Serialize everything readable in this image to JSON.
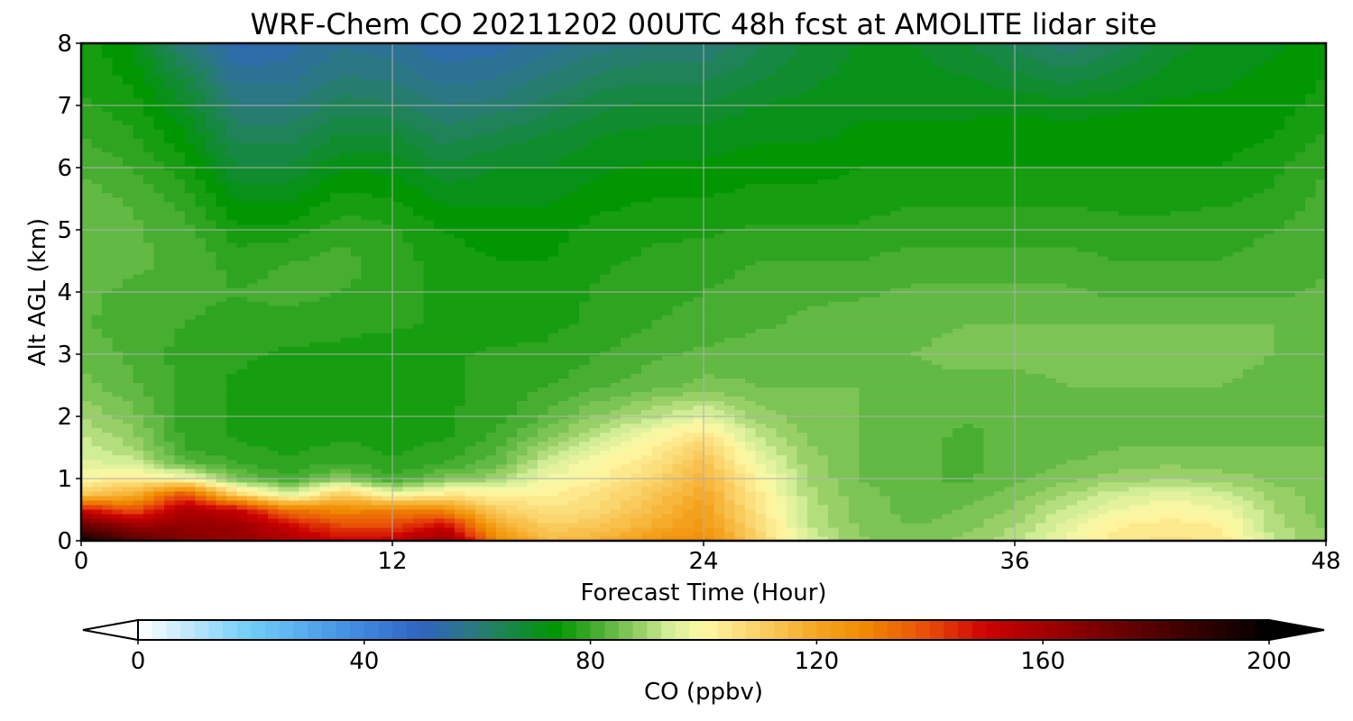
{
  "chart_data": {
    "type": "heatmap",
    "title": "WRF-Chem CO  20211202 00UTC 48h fcst at AMOLITE lidar site",
    "xlabel": "Forecast Time (Hour)",
    "ylabel": "Alt AGL (km)",
    "xlim": [
      0,
      48
    ],
    "ylim": [
      0,
      8
    ],
    "xticks": [
      0,
      12,
      24,
      36,
      48
    ],
    "yticks": [
      0,
      1,
      2,
      3,
      4,
      5,
      6,
      7,
      8
    ],
    "grid": true,
    "x": [
      0,
      2,
      4,
      6,
      8,
      10,
      12,
      14,
      16,
      18,
      20,
      22,
      24,
      26,
      28,
      30,
      32,
      34,
      36,
      38,
      40,
      42,
      44,
      46,
      48
    ],
    "y": [
      0,
      0.25,
      0.5,
      0.75,
      1.0,
      1.25,
      1.5,
      1.75,
      2.0,
      2.5,
      3.0,
      3.5,
      4.0,
      4.5,
      5.0,
      5.5,
      6.0,
      6.5,
      7.0,
      7.5,
      8.0
    ],
    "z": [
      [
        198,
        180,
        168,
        163,
        158,
        150,
        152,
        165,
        130,
        115,
        118,
        125,
        128,
        110,
        95,
        88,
        86,
        88,
        92,
        98,
        104,
        106,
        104,
        92,
        88
      ],
      [
        175,
        162,
        164,
        162,
        150,
        140,
        140,
        150,
        120,
        110,
        112,
        118,
        124,
        108,
        93,
        87,
        85,
        86,
        90,
        96,
        102,
        104,
        102,
        91,
        87
      ],
      [
        150,
        138,
        158,
        152,
        132,
        128,
        130,
        128,
        110,
        106,
        108,
        115,
        122,
        106,
        92,
        86,
        84,
        85,
        88,
        93,
        98,
        100,
        98,
        90,
        86
      ],
      [
        112,
        118,
        140,
        110,
        95,
        112,
        98,
        104,
        102,
        102,
        106,
        112,
        120,
        104,
        91,
        86,
        84,
        84,
        86,
        90,
        94,
        96,
        94,
        89,
        86
      ],
      [
        100,
        104,
        100,
        86,
        80,
        88,
        80,
        86,
        90,
        98,
        102,
        108,
        117,
        102,
        90,
        85,
        83,
        82,
        84,
        87,
        89,
        90,
        89,
        87,
        85
      ],
      [
        96,
        94,
        84,
        80,
        78,
        80,
        78,
        80,
        84,
        94,
        100,
        105,
        114,
        98,
        89,
        85,
        83,
        82,
        83,
        85,
        86,
        87,
        86,
        86,
        85
      ],
      [
        94,
        90,
        80,
        78,
        77,
        78,
        77,
        78,
        82,
        90,
        96,
        102,
        110,
        95,
        88,
        85,
        83,
        82,
        83,
        84,
        85,
        85,
        85,
        85,
        85
      ],
      [
        92,
        88,
        79,
        77,
        76,
        77,
        77,
        77,
        80,
        86,
        92,
        98,
        104,
        92,
        87,
        85,
        84,
        82,
        83,
        84,
        84,
        84,
        84,
        84,
        85
      ],
      [
        90,
        86,
        79,
        77,
        76,
        76,
        76,
        77,
        79,
        83,
        88,
        92,
        96,
        89,
        86,
        85,
        84,
        83,
        83,
        84,
        84,
        84,
        84,
        84,
        84
      ],
      [
        86,
        83,
        79,
        77,
        76,
        76,
        76,
        77,
        78,
        80,
        82,
        84,
        86,
        85,
        85,
        85,
        84,
        84,
        84,
        85,
        85,
        85,
        85,
        84,
        84
      ],
      [
        84,
        82,
        79,
        78,
        77,
        77,
        76,
        77,
        78,
        78,
        80,
        82,
        83,
        84,
        84,
        85,
        85,
        86,
        86,
        86,
        86,
        86,
        86,
        85,
        84
      ],
      [
        83,
        81,
        80,
        79,
        79,
        78,
        78,
        77,
        76,
        77,
        78,
        80,
        81,
        82,
        83,
        84,
        84,
        85,
        85,
        85,
        85,
        85,
        85,
        85,
        84
      ],
      [
        83,
        82,
        81,
        80,
        81,
        80,
        79,
        76,
        76,
        76,
        78,
        79,
        80,
        81,
        82,
        82,
        83,
        83,
        83,
        83,
        82,
        82,
        82,
        82,
        83
      ],
      [
        84,
        83,
        82,
        79,
        80,
        81,
        79,
        76,
        75,
        75,
        77,
        78,
        79,
        80,
        80,
        80,
        81,
        81,
        81,
        81,
        80,
        80,
        80,
        81,
        82
      ],
      [
        85,
        83,
        81,
        76,
        76,
        79,
        78,
        75,
        74,
        74,
        76,
        77,
        77,
        78,
        78,
        78,
        79,
        79,
        79,
        79,
        78,
        78,
        79,
        80,
        82
      ],
      [
        84,
        82,
        79,
        72,
        72,
        76,
        75,
        72,
        72,
        72,
        74,
        75,
        75,
        76,
        76,
        76,
        77,
        77,
        77,
        77,
        77,
        77,
        77,
        78,
        81
      ],
      [
        82,
        80,
        76,
        68,
        68,
        72,
        72,
        68,
        70,
        70,
        72,
        73,
        73,
        74,
        74,
        75,
        75,
        75,
        75,
        75,
        75,
        75,
        75,
        77,
        80
      ],
      [
        80,
        78,
        73,
        64,
        64,
        68,
        68,
        64,
        66,
        68,
        70,
        71,
        71,
        72,
        72,
        73,
        73,
        73,
        74,
        74,
        74,
        74,
        74,
        75,
        78
      ],
      [
        78,
        76,
        70,
        60,
        60,
        64,
        63,
        60,
        61,
        64,
        67,
        68,
        68,
        70,
        71,
        72,
        72,
        72,
        72,
        71,
        72,
        73,
        73,
        74,
        76
      ],
      [
        77,
        74,
        66,
        56,
        56,
        60,
        59,
        56,
        57,
        60,
        63,
        64,
        64,
        67,
        69,
        71,
        71,
        70,
        68,
        66,
        68,
        71,
        72,
        73,
        75
      ],
      [
        77,
        72,
        60,
        52,
        54,
        57,
        56,
        53,
        54,
        56,
        59,
        60,
        60,
        64,
        68,
        70,
        70,
        68,
        64,
        61,
        64,
        69,
        71,
        72,
        74
      ]
    ],
    "colorbar": {
      "label": "CO  (ppbv)",
      "min": 0,
      "max": 200,
      "ticks": [
        0,
        40,
        80,
        120,
        160,
        200
      ],
      "extend": "both",
      "stops": [
        {
          "v": 0,
          "c": "#ffffff"
        },
        {
          "v": 20,
          "c": "#6fcdf9"
        },
        {
          "v": 40,
          "c": "#3e86de"
        },
        {
          "v": 50,
          "c": "#2f64c0"
        },
        {
          "v": 60,
          "c": "#2a7a7a"
        },
        {
          "v": 74,
          "c": "#009600"
        },
        {
          "v": 80,
          "c": "#3aa82a"
        },
        {
          "v": 88,
          "c": "#8fcc60"
        },
        {
          "v": 94,
          "c": "#d4ee98"
        },
        {
          "v": 100,
          "c": "#fff9a6"
        },
        {
          "v": 120,
          "c": "#f5a623"
        },
        {
          "v": 128,
          "c": "#f08c00"
        },
        {
          "v": 140,
          "c": "#e84a0a"
        },
        {
          "v": 150,
          "c": "#cc0000"
        },
        {
          "v": 170,
          "c": "#7a0000"
        },
        {
          "v": 190,
          "c": "#2a0000"
        },
        {
          "v": 200,
          "c": "#000000"
        }
      ]
    }
  }
}
